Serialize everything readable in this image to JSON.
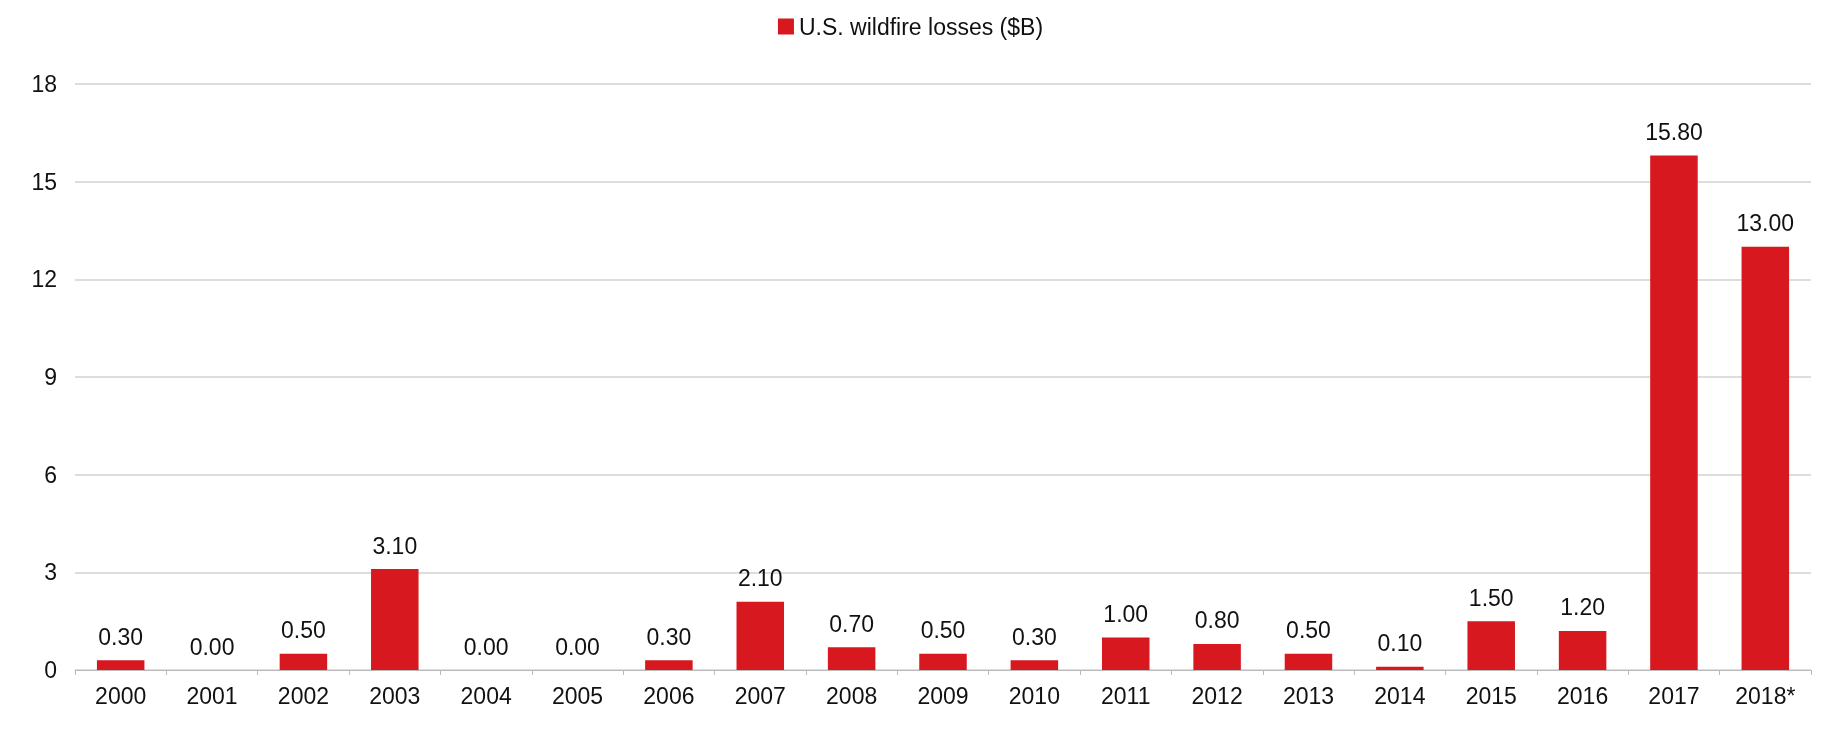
{
  "chart_data": {
    "type": "bar",
    "categories": [
      "2000",
      "2001",
      "2002",
      "2003",
      "2004",
      "2005",
      "2006",
      "2007",
      "2008",
      "2009",
      "2010",
      "2011",
      "2012",
      "2013",
      "2014",
      "2015",
      "2016",
      "2017",
      "2018*"
    ],
    "series": [
      {
        "name": "U.S. wildfire losses ($B)",
        "color": "#d7191f",
        "values": [
          0.3,
          0,
          0.5,
          3.1,
          0,
          0,
          0.3,
          2.1,
          0.7,
          0.5,
          0.3,
          1,
          0.8,
          0.5,
          0.1,
          1.5,
          1.2,
          15.8,
          13
        ],
        "value_labels": [
          "0.30",
          "0.00",
          "0.50",
          "3.10",
          "0.00",
          "0.00",
          "0.30",
          "2.10",
          "0.70",
          "0.50",
          "0.30",
          "1.00",
          "0.80",
          "0.50",
          "0.10",
          "1.50",
          "1.20",
          "15.80",
          "13.00"
        ]
      }
    ],
    "ylim": [
      0,
      18
    ],
    "yticks": [
      0,
      3,
      6,
      9,
      12,
      15,
      18
    ],
    "grid": "y",
    "legend": "top"
  }
}
